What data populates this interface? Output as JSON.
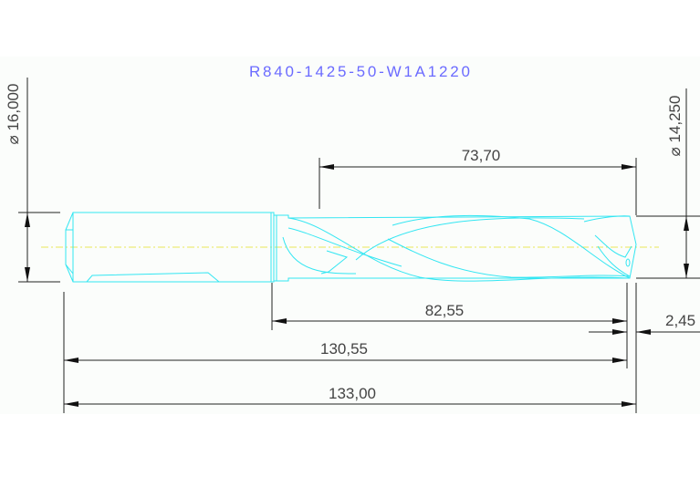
{
  "title": "R840-1425-50-W1A1220",
  "dimensions": {
    "shank_diameter": "⌀ 16,000",
    "drill_diameter": "⌀ 14,250",
    "flute_length": "73,70",
    "body_length": "82,55",
    "point_length": "2,45",
    "length_to_corner": "130,55",
    "overall_length": "133,00"
  },
  "colors": {
    "title": "#6b6bff",
    "part_outline": "#33e6f2",
    "centerline": "#e8e85a",
    "dimension": "#222222"
  }
}
